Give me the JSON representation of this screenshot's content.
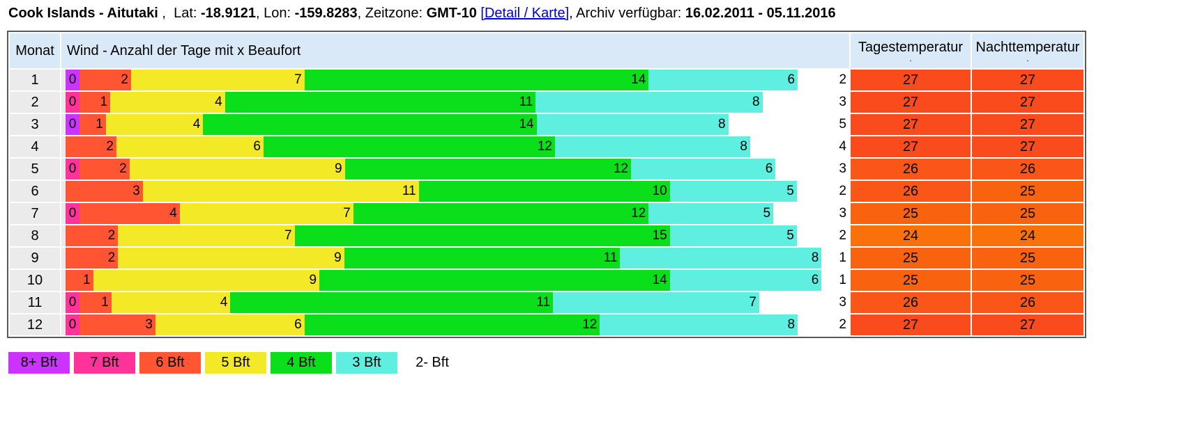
{
  "title": {
    "name": "Cook Islands - Aitutaki",
    "sep": " ,  ",
    "lat_label": "Lat: ",
    "lat_value": "-18.9121",
    "lon_label": ", Lon: ",
    "lon_value": "-159.8283",
    "tz_label": ", Zeitzone: ",
    "tz_value": "GMT-10",
    "space": " ",
    "link_label": "[Detail / Karte]",
    "archive_label": ", Archiv verfügbar: ",
    "archive_value": "16.02.2011 - 05.11.2016"
  },
  "table": {
    "headers": {
      "month": "Monat",
      "wind": "Wind - Anzahl der Tage mit x Beaufort",
      "day_temp": "Tagestemperatur",
      "day_temp_sub": ".",
      "night_temp": "Nachttemperatur",
      "night_temp_sub": "."
    },
    "rows": [
      {
        "month": "1",
        "day_temp": "27",
        "night_temp": "27",
        "segments": [
          {
            "bft": "8+",
            "value": "0"
          },
          {
            "bft": "6",
            "value": "2"
          },
          {
            "bft": "5",
            "value": "7"
          },
          {
            "bft": "4",
            "value": "14"
          },
          {
            "bft": "3",
            "value": "6"
          },
          {
            "bft": "2-",
            "value": "2"
          }
        ]
      },
      {
        "month": "2",
        "day_temp": "27",
        "night_temp": "27",
        "segments": [
          {
            "bft": "7",
            "value": "0"
          },
          {
            "bft": "6",
            "value": "1"
          },
          {
            "bft": "5",
            "value": "4"
          },
          {
            "bft": "4",
            "value": "11"
          },
          {
            "bft": "3",
            "value": "8"
          },
          {
            "bft": "2-",
            "value": "3"
          }
        ]
      },
      {
        "month": "3",
        "day_temp": "27",
        "night_temp": "27",
        "segments": [
          {
            "bft": "8+",
            "value": "0"
          },
          {
            "bft": "6",
            "value": "1"
          },
          {
            "bft": "5",
            "value": "4"
          },
          {
            "bft": "4",
            "value": "14"
          },
          {
            "bft": "3",
            "value": "8"
          },
          {
            "bft": "2-",
            "value": "5"
          }
        ]
      },
      {
        "month": "4",
        "day_temp": "27",
        "night_temp": "27",
        "segments": [
          {
            "bft": "6",
            "value": "2"
          },
          {
            "bft": "5",
            "value": "6"
          },
          {
            "bft": "4",
            "value": "12"
          },
          {
            "bft": "3",
            "value": "8"
          },
          {
            "bft": "2-",
            "value": "4"
          }
        ]
      },
      {
        "month": "5",
        "day_temp": "26",
        "night_temp": "26",
        "segments": [
          {
            "bft": "7",
            "value": "0"
          },
          {
            "bft": "6",
            "value": "2"
          },
          {
            "bft": "5",
            "value": "9"
          },
          {
            "bft": "4",
            "value": "12"
          },
          {
            "bft": "3",
            "value": "6"
          },
          {
            "bft": "2-",
            "value": "3"
          }
        ]
      },
      {
        "month": "6",
        "day_temp": "26",
        "night_temp": "25",
        "segments": [
          {
            "bft": "6",
            "value": "3"
          },
          {
            "bft": "5",
            "value": "11"
          },
          {
            "bft": "4",
            "value": "10"
          },
          {
            "bft": "3",
            "value": "5"
          },
          {
            "bft": "2-",
            "value": "2"
          }
        ]
      },
      {
        "month": "7",
        "day_temp": "25",
        "night_temp": "25",
        "segments": [
          {
            "bft": "7",
            "value": "0"
          },
          {
            "bft": "6",
            "value": "4"
          },
          {
            "bft": "5",
            "value": "7"
          },
          {
            "bft": "4",
            "value": "12"
          },
          {
            "bft": "3",
            "value": "5"
          },
          {
            "bft": "2-",
            "value": "3"
          }
        ]
      },
      {
        "month": "8",
        "day_temp": "24",
        "night_temp": "24",
        "segments": [
          {
            "bft": "6",
            "value": "2"
          },
          {
            "bft": "5",
            "value": "7"
          },
          {
            "bft": "4",
            "value": "15"
          },
          {
            "bft": "3",
            "value": "5"
          },
          {
            "bft": "2-",
            "value": "2"
          }
        ]
      },
      {
        "month": "9",
        "day_temp": "25",
        "night_temp": "25",
        "segments": [
          {
            "bft": "6",
            "value": "2"
          },
          {
            "bft": "5",
            "value": "9"
          },
          {
            "bft": "4",
            "value": "11"
          },
          {
            "bft": "3",
            "value": "8"
          },
          {
            "bft": "2-",
            "value": "1"
          }
        ]
      },
      {
        "month": "10",
        "day_temp": "25",
        "night_temp": "25",
        "segments": [
          {
            "bft": "6",
            "value": "1"
          },
          {
            "bft": "5",
            "value": "9"
          },
          {
            "bft": "4",
            "value": "14"
          },
          {
            "bft": "3",
            "value": "6"
          },
          {
            "bft": "2-",
            "value": "1"
          }
        ]
      },
      {
        "month": "11",
        "day_temp": "26",
        "night_temp": "26",
        "segments": [
          {
            "bft": "7",
            "value": "0"
          },
          {
            "bft": "6",
            "value": "1"
          },
          {
            "bft": "5",
            "value": "4"
          },
          {
            "bft": "4",
            "value": "11"
          },
          {
            "bft": "3",
            "value": "7"
          },
          {
            "bft": "2-",
            "value": "3"
          }
        ]
      },
      {
        "month": "12",
        "day_temp": "27",
        "night_temp": "27",
        "segments": [
          {
            "bft": "7",
            "value": "0"
          },
          {
            "bft": "6",
            "value": "3"
          },
          {
            "bft": "5",
            "value": "6"
          },
          {
            "bft": "4",
            "value": "12"
          },
          {
            "bft": "3",
            "value": "8"
          },
          {
            "bft": "2-",
            "value": "2"
          }
        ]
      }
    ]
  },
  "legend": [
    {
      "label": "8+ Bft",
      "color": "#cc33ff"
    },
    {
      "label": "7 Bft",
      "color": "#ff3399"
    },
    {
      "label": "6 Bft",
      "color": "#ff5533"
    },
    {
      "label": "5 Bft",
      "color": "#f3e926"
    },
    {
      "label": "4 Bft",
      "color": "#0bdf1c"
    },
    {
      "label": "3 Bft",
      "color": "#5fefe0"
    },
    {
      "label": "2- Bft",
      "color": "#ffffff"
    }
  ],
  "colors": {
    "beaufort": {
      "8+": "#cc33ff",
      "7": "#ff3399",
      "6": "#ff5533",
      "5": "#f3e926",
      "4": "#0bdf1c",
      "3": "#5fefe0",
      "2-": "#ffffff"
    },
    "temperature": {
      "27": "#f94b1c",
      "26": "#f95617",
      "25": "#f96310",
      "24": "#fa710c"
    },
    "header_bg": "#d9e9f8",
    "row_bg": "#ebebeb",
    "link": "#0000cc"
  },
  "chart_data": {
    "type": "bar",
    "subtype": "stacked-horizontal",
    "title": "Wind - Anzahl der Tage mit x Beaufort",
    "xlabel": "Anzahl der Tage",
    "ylabel": "Monat",
    "categories": [
      1,
      2,
      3,
      4,
      5,
      6,
      7,
      8,
      9,
      10,
      11,
      12
    ],
    "legend_position": "bottom",
    "grid": false,
    "series": [
      {
        "name": "8+ Bft",
        "color": "#cc33ff",
        "values": [
          0,
          null,
          0,
          null,
          null,
          null,
          null,
          null,
          null,
          null,
          null,
          null
        ]
      },
      {
        "name": "7 Bft",
        "color": "#ff3399",
        "values": [
          null,
          0,
          null,
          null,
          0,
          null,
          0,
          null,
          null,
          null,
          0,
          0
        ]
      },
      {
        "name": "6 Bft",
        "color": "#ff5533",
        "values": [
          2,
          1,
          1,
          2,
          2,
          3,
          4,
          2,
          2,
          1,
          1,
          3
        ]
      },
      {
        "name": "5 Bft",
        "color": "#f3e926",
        "values": [
          7,
          4,
          4,
          6,
          9,
          11,
          7,
          7,
          9,
          9,
          4,
          6
        ]
      },
      {
        "name": "4 Bft",
        "color": "#0bdf1c",
        "values": [
          14,
          11,
          14,
          12,
          12,
          10,
          12,
          15,
          11,
          14,
          11,
          12
        ]
      },
      {
        "name": "3 Bft",
        "color": "#5fefe0",
        "values": [
          6,
          8,
          8,
          8,
          6,
          5,
          5,
          5,
          8,
          6,
          7,
          8
        ]
      },
      {
        "name": "2- Bft",
        "color": "#ffffff",
        "values": [
          2,
          3,
          5,
          4,
          3,
          2,
          3,
          2,
          1,
          1,
          3,
          2
        ]
      }
    ],
    "extra_columns": [
      {
        "name": "Tagestemperatur",
        "values": [
          27,
          27,
          27,
          27,
          26,
          26,
          25,
          24,
          25,
          25,
          26,
          27
        ]
      },
      {
        "name": "Nachttemperatur",
        "values": [
          27,
          27,
          27,
          27,
          26,
          25,
          25,
          24,
          25,
          25,
          26,
          27
        ]
      }
    ]
  }
}
